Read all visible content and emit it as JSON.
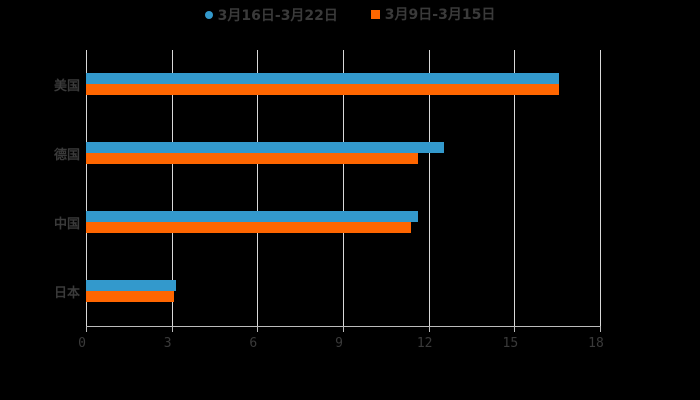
{
  "chart_data": {
    "type": "bar",
    "orientation": "horizontal",
    "title": "",
    "xlabel": "",
    "ylabel": "",
    "categories": [
      "美国",
      "德国",
      "中国",
      "日本"
    ],
    "series": [
      {
        "name": "3月16日-3月22日",
        "color": "#3399cc",
        "values": [
          16.56,
          12.53,
          11.62,
          3.15
        ]
      },
      {
        "name": "3月9日-3月15日",
        "color": "#ff6600",
        "values": [
          16.56,
          11.62,
          11.38,
          3.08
        ]
      }
    ],
    "xlim": [
      0,
      18
    ],
    "xticks": [
      "0",
      "3",
      "6",
      "9",
      "12",
      "15",
      "18"
    ],
    "grid": true,
    "legend_position": "top"
  },
  "legend": {
    "items": [
      {
        "label": "3月16日-3月22日",
        "color": "#3399cc"
      },
      {
        "label": "3月9日-3月15日",
        "color": "#ff6600"
      }
    ]
  }
}
